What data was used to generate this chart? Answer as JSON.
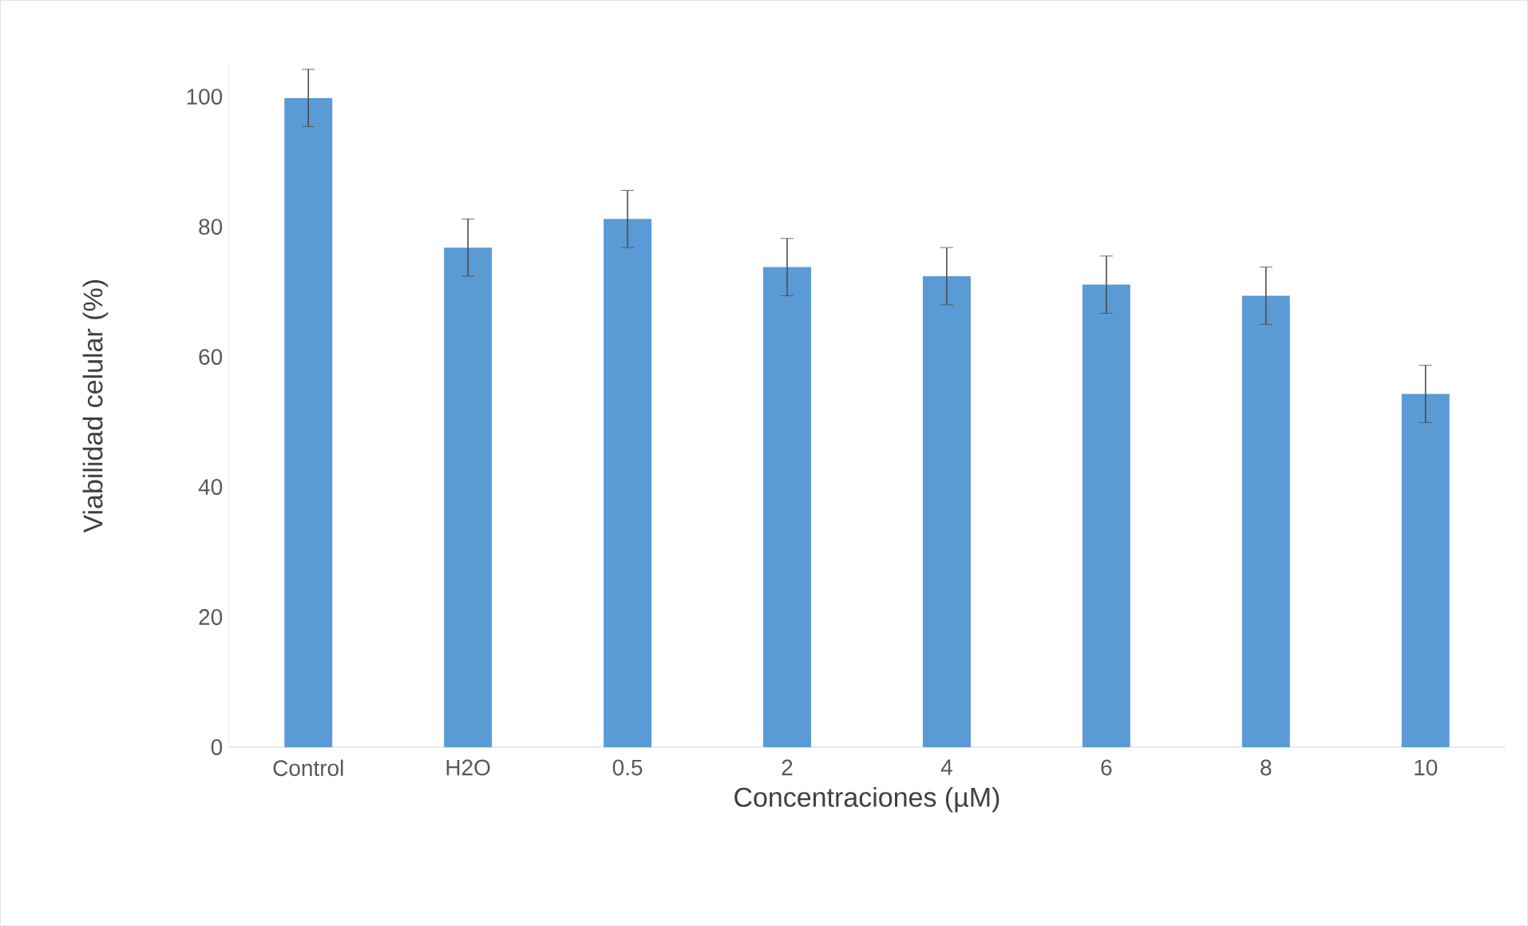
{
  "chart_data": {
    "type": "bar",
    "xlabel": "Concentraciones (µM)",
    "ylabel": "Viabilidad celular (%)",
    "categories": [
      "Control",
      "H2O",
      "0.5",
      "2",
      "4",
      "6",
      "8",
      "10"
    ],
    "values": [
      99.8,
      76.8,
      81.2,
      73.8,
      72.4,
      71.1,
      69.4,
      54.3
    ],
    "errors": [
      4.4,
      4.4,
      4.4,
      4.4,
      4.4,
      4.4,
      4.4,
      4.4
    ],
    "color": "#5b9bd5",
    "ylim": [
      0,
      105
    ],
    "yticks": [
      0,
      20,
      40,
      60,
      80,
      100
    ],
    "grid": false
  }
}
